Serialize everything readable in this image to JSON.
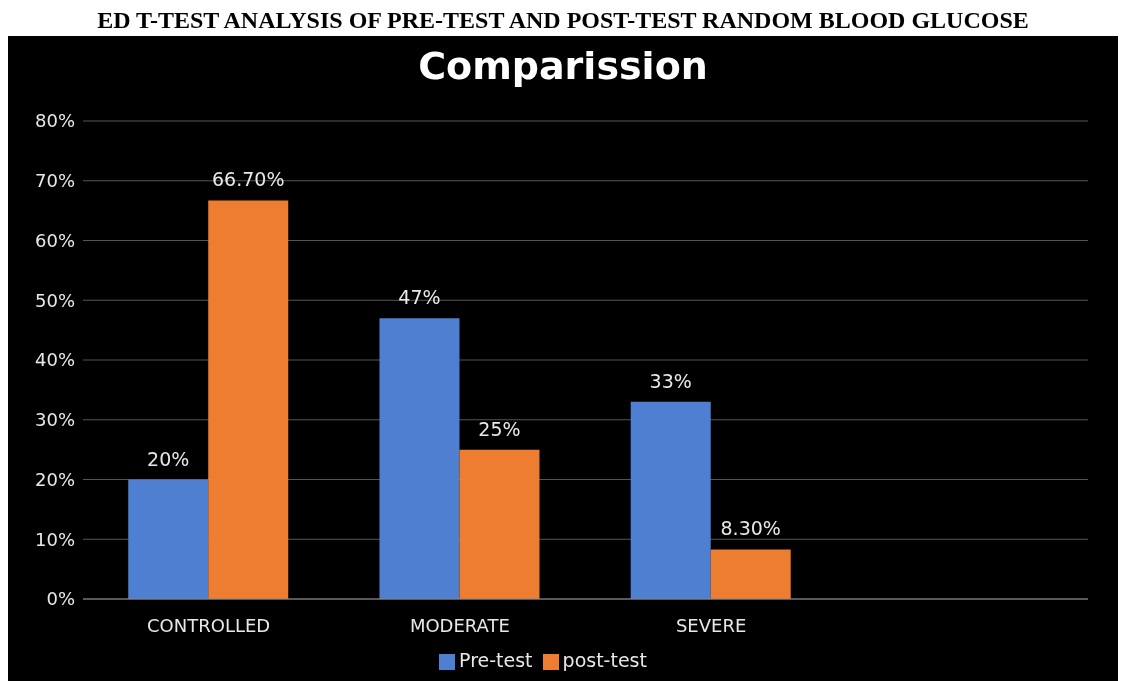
{
  "chart_data": {
    "type": "bar",
    "title": "Comparission",
    "annotations": [
      "ED T-TEST ANALYSIS OF PRE-TEST AND POST-TEST RANDOM BLOOD GLUCOSE"
    ],
    "categories": [
      "CONTROLLED",
      "MODERATE",
      "SEVERE",
      null
    ],
    "series": [
      {
        "name": "Pre-test",
        "color": "#4f7fd0",
        "values": [
          20,
          47,
          33,
          null
        ],
        "value_labels": [
          "20%",
          "47%",
          "33%",
          null
        ]
      },
      {
        "name": "post-test",
        "color": "#ed7d31",
        "values": [
          66.7,
          25,
          8.3,
          null
        ],
        "value_labels": [
          "66.70%",
          "25%",
          "8.30%",
          null
        ]
      }
    ],
    "ylim": [
      0,
      80
    ],
    "yticks": [
      {
        "value": 0,
        "label": "0%"
      },
      {
        "value": 10,
        "label": "10%"
      },
      {
        "value": 20,
        "label": "20%"
      },
      {
        "value": 30,
        "label": "30%"
      },
      {
        "value": 40,
        "label": "40%"
      },
      {
        "value": 50,
        "label": "50%"
      },
      {
        "value": 60,
        "label": "60%"
      },
      {
        "value": 70,
        "label": "70%"
      },
      {
        "value": 80,
        "label": "80%"
      }
    ],
    "grid": "y",
    "legend": "bottom"
  }
}
